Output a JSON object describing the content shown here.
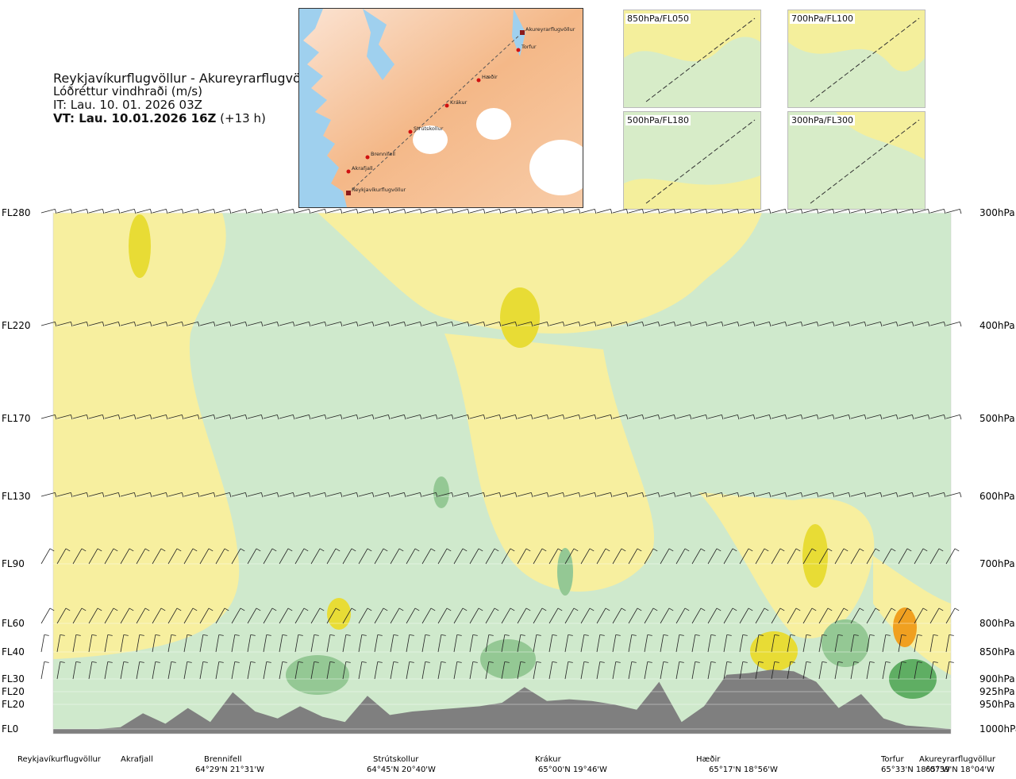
{
  "header": {
    "route": "Reykjavíkurflugvöllur - Akureyrarflugvöllur",
    "variable": "Lóðréttur vindhraði (m/s)",
    "issue_time": "IT: Lau. 10. 01. 2026 03Z",
    "valid_time_bold": "VT: Lau. 10.01.2026 16Z",
    "valid_offset": "(+13 h)"
  },
  "map": {
    "points": [
      {
        "name": "Akureyrarflugvöllur"
      },
      {
        "name": "Torfur"
      },
      {
        "name": "Hæðir"
      },
      {
        "name": "Krákur"
      },
      {
        "name": "Strútskollur"
      },
      {
        "name": "Brennifell"
      },
      {
        "name": "Akrafjall"
      },
      {
        "name": "Reykjavíkurflugvöllur"
      }
    ]
  },
  "panels": [
    {
      "label": "850hPa/FL050"
    },
    {
      "label": "700hPa/FL100"
    },
    {
      "label": "500hPa/FL180"
    },
    {
      "label": "300hPa/FL300"
    }
  ],
  "colors": {
    "terrain": "#7f7f7f",
    "down_light": "#f7ef9f",
    "down_mid": "#e8dc35",
    "down_strong": "#f0a020",
    "up_light": "#cfe9cc",
    "up_mid": "#94c894",
    "up_strong": "#5fae63",
    "near_zero": "#ffffff"
  },
  "chart_data": {
    "type": "heatmap",
    "title": "Lóðréttur vindhraði (m/s)",
    "y_levels": [
      {
        "fl": "FL280",
        "hpa": "300hPa"
      },
      {
        "fl": "FL220",
        "hpa": "400hPa"
      },
      {
        "fl": "FL170",
        "hpa": "500hPa"
      },
      {
        "fl": "FL130",
        "hpa": "600hPa"
      },
      {
        "fl": "FL90",
        "hpa": "700hPa"
      },
      {
        "fl": "FL60",
        "hpa": "800hPa"
      },
      {
        "fl": "FL40",
        "hpa": "850hPa"
      },
      {
        "fl": "FL30",
        "hpa": "900hPa"
      },
      {
        "fl": "FL20",
        "hpa": "925hPa"
      },
      {
        "fl": "FL20",
        "hpa": "950hPa"
      },
      {
        "fl": "FL0",
        "hpa": "1000hPa"
      }
    ],
    "x_locations": [
      {
        "name": "Reykjavíkurflugvöllur",
        "coord": ""
      },
      {
        "name": "Akrafjall",
        "coord": ""
      },
      {
        "name": "Brennifell",
        "coord": "64°29'N 21°31'W"
      },
      {
        "name": "Strútskollur",
        "coord": "64°45'N 20°40'W"
      },
      {
        "name": "Krákur",
        "coord": "65°00'N 19°46'W"
      },
      {
        "name": "Hæðir",
        "coord": "65°17'N 18°56'W"
      },
      {
        "name": "Torfur",
        "coord": "65°33'N 18°07'W"
      },
      {
        "name": "Akureyrarflugvöllur",
        "coord": "65°39'N 18°04'W"
      }
    ],
    "terrain_profile": [
      0,
      0,
      0,
      0.1,
      0.9,
      0.3,
      1.2,
      0.4,
      2.1,
      1.0,
      0.6,
      1.3,
      0.7,
      0.4,
      1.9,
      0.8,
      1.0,
      1.1,
      1.2,
      1.3,
      1.5,
      2.4,
      1.6,
      1.7,
      1.6,
      1.4,
      1.1,
      2.7,
      0.4,
      1.3,
      3.1,
      3.2,
      3.4,
      3.3,
      2.7,
      1.2,
      2.0,
      0.6,
      0.2,
      0.1,
      0
    ],
    "notes": "Vertical cross-section of vertical wind speed along route with wind barbs at pressure levels"
  }
}
